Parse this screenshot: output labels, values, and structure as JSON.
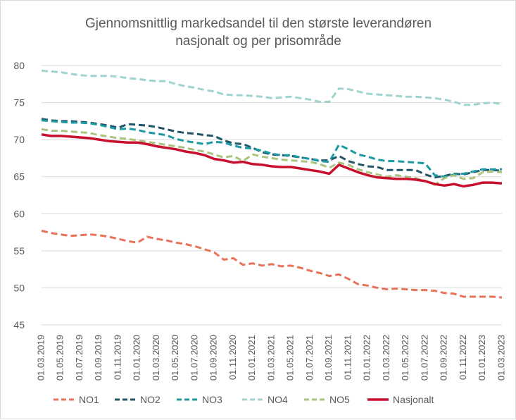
{
  "chart_data": {
    "type": "line",
    "title_lines": [
      "Gjennomsnittlig markedsandel til den største leverandøren",
      "nasjonalt og per prisområde"
    ],
    "xlabel": "",
    "ylabel": "",
    "ylim": [
      45,
      80
    ],
    "yticks": [
      45,
      50,
      55,
      60,
      65,
      70,
      75,
      80
    ],
    "grid": "horizontal",
    "legend_position": "bottom",
    "x": [
      "01.03.2019",
      "01.04.2019",
      "01.05.2019",
      "01.06.2019",
      "01.07.2019",
      "01.08.2019",
      "01.09.2019",
      "01.10.2019",
      "01.11.2019",
      "01.12.2019",
      "01.01.2020",
      "01.02.2020",
      "01.03.2020",
      "01.04.2020",
      "01.05.2020",
      "01.06.2020",
      "01.07.2020",
      "01.08.2020",
      "01.09.2020",
      "01.10.2020",
      "01.11.2020",
      "01.12.2020",
      "01.01.2021",
      "01.02.2021",
      "01.03.2021",
      "01.04.2021",
      "01.05.2021",
      "01.06.2021",
      "01.07.2021",
      "01.08.2021",
      "01.09.2021",
      "01.10.2021",
      "01.11.2021",
      "01.12.2021",
      "01.01.2022",
      "01.02.2022",
      "01.03.2022",
      "01.04.2022",
      "01.05.2022",
      "01.06.2022",
      "01.07.2022",
      "01.08.2022",
      "01.09.2022",
      "01.10.2022",
      "01.11.2022",
      "01.12.2022",
      "01.01.2023",
      "01.02.2023",
      "01.03.2023"
    ],
    "x_tick_labels": [
      "01.03.2019",
      "01.05.2019",
      "01.07.2019",
      "01.09.2019",
      "01.11.2019",
      "01.01.2020",
      "01.03.2020",
      "01.05.2020",
      "01.07.2020",
      "01.09.2020",
      "01.11.2020",
      "01.01.2021",
      "01.03.2021",
      "01.05.2021",
      "01.07.2021",
      "01.09.2021",
      "01.11.2021",
      "01.01.2022",
      "01.03.2022",
      "01.05.2022",
      "01.07.2022",
      "01.09.2022",
      "01.11.2022",
      "01.01.2023",
      "01.03.2023"
    ],
    "series": [
      {
        "name": "NO1",
        "color": "#e8735a",
        "dash": "dashed",
        "values": [
          57.7,
          57.4,
          57.2,
          57.0,
          57.1,
          57.2,
          57.1,
          56.9,
          56.6,
          56.3,
          56.1,
          56.9,
          56.6,
          56.4,
          56.1,
          55.9,
          55.6,
          55.2,
          54.8,
          53.8,
          54.0,
          53.1,
          53.3,
          53.0,
          53.2,
          52.9,
          53.0,
          52.7,
          52.3,
          52.0,
          51.6,
          51.8,
          51.2,
          50.5,
          50.3,
          50.0,
          49.8,
          49.9,
          49.8,
          49.7,
          49.7,
          49.6,
          49.3,
          49.2,
          48.8,
          48.8,
          48.8,
          48.8,
          48.7
        ]
      },
      {
        "name": "NO2",
        "color": "#1f5566",
        "dash": "dashed",
        "values": [
          72.8,
          72.6,
          72.5,
          72.5,
          72.4,
          72.3,
          72.1,
          71.9,
          71.6,
          72.1,
          72.0,
          71.9,
          71.7,
          71.4,
          71.1,
          70.9,
          70.8,
          70.6,
          70.5,
          69.9,
          69.5,
          69.4,
          68.9,
          68.3,
          68.0,
          67.9,
          67.8,
          67.6,
          67.4,
          67.2,
          67.2,
          67.8,
          67.1,
          66.7,
          66.4,
          66.3,
          65.9,
          65.9,
          65.9,
          65.9,
          65.3,
          64.9,
          65.1,
          65.4,
          65.3,
          65.6,
          65.9,
          65.9,
          65.8
        ]
      },
      {
        "name": "NO3",
        "color": "#1c9aa3",
        "dash": "dashed",
        "values": [
          72.6,
          72.5,
          72.4,
          72.3,
          72.3,
          72.2,
          72.0,
          71.7,
          71.4,
          71.5,
          71.3,
          71.0,
          70.8,
          70.6,
          70.1,
          69.8,
          69.6,
          69.4,
          69.7,
          69.6,
          69.2,
          68.9,
          68.8,
          68.5,
          68.1,
          67.9,
          67.9,
          67.6,
          67.4,
          67.1,
          67.0,
          69.3,
          68.7,
          68.0,
          67.7,
          67.3,
          67.1,
          67.1,
          67.0,
          66.9,
          66.8,
          65.2,
          65.0,
          65.3,
          65.4,
          65.7,
          66.0,
          66.0,
          66.0
        ]
      },
      {
        "name": "NO4",
        "color": "#9fd3ce",
        "dash": "dashed",
        "values": [
          79.3,
          79.2,
          79.1,
          78.9,
          78.7,
          78.6,
          78.6,
          78.6,
          78.5,
          78.3,
          78.2,
          78.0,
          77.9,
          77.9,
          77.5,
          77.2,
          77.0,
          76.7,
          76.5,
          76.1,
          76.0,
          76.0,
          75.9,
          75.8,
          75.6,
          75.7,
          75.8,
          75.6,
          75.4,
          75.1,
          75.1,
          76.9,
          76.8,
          76.5,
          76.2,
          76.1,
          76.0,
          75.9,
          75.8,
          75.8,
          75.7,
          75.6,
          75.4,
          75.1,
          74.7,
          74.7,
          74.9,
          75.0,
          74.8
        ]
      },
      {
        "name": "NO5",
        "color": "#a9c47f",
        "dash": "dashed",
        "values": [
          71.4,
          71.2,
          71.2,
          71.1,
          71.0,
          70.9,
          70.6,
          70.4,
          70.2,
          70.1,
          69.9,
          69.7,
          69.5,
          69.3,
          69.1,
          68.9,
          68.6,
          68.4,
          68.0,
          67.6,
          67.8,
          67.1,
          68.0,
          67.7,
          67.5,
          67.3,
          67.2,
          67.1,
          67.0,
          66.7,
          66.2,
          66.9,
          66.6,
          66.0,
          65.6,
          65.3,
          65.0,
          65.2,
          65.0,
          64.8,
          64.4,
          63.9,
          64.8,
          65.2,
          64.7,
          64.8,
          65.6,
          65.7,
          65.6
        ]
      },
      {
        "name": "Nasjonalt",
        "color": "#c8102e",
        "dash": "solid",
        "values": [
          70.7,
          70.5,
          70.5,
          70.4,
          70.3,
          70.2,
          70.0,
          69.8,
          69.7,
          69.6,
          69.6,
          69.4,
          69.1,
          68.9,
          68.7,
          68.4,
          68.2,
          67.9,
          67.4,
          67.2,
          66.9,
          67.0,
          66.7,
          66.6,
          66.4,
          66.3,
          66.3,
          66.1,
          65.9,
          65.7,
          65.4,
          66.6,
          66.1,
          65.6,
          65.2,
          64.9,
          64.8,
          64.7,
          64.7,
          64.6,
          64.4,
          64.0,
          63.8,
          64.0,
          63.7,
          63.9,
          64.2,
          64.2,
          64.1
        ]
      }
    ]
  }
}
